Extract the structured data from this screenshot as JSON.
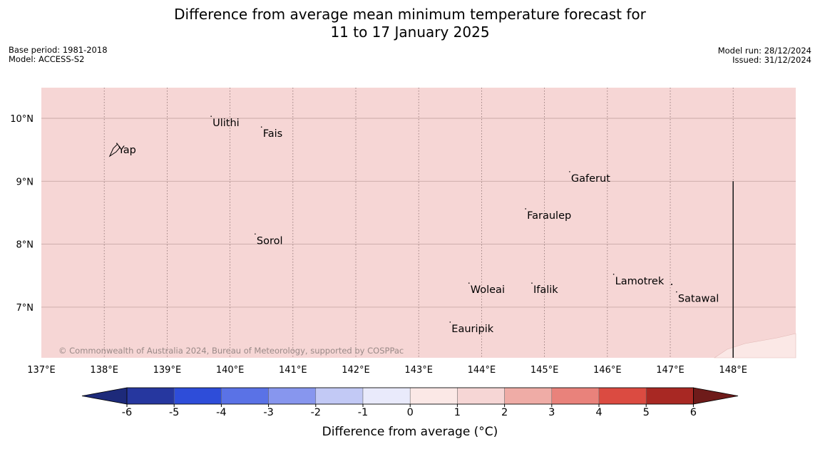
{
  "title_line1": "Difference from average mean minimum temperature forecast for",
  "title_line2": "11 to 17 January 2025",
  "meta_left": [
    "Base period: 1981-2018",
    "Model: ACCESS-S2"
  ],
  "meta_right": [
    "Model run: 28/12/2024",
    "Issued: 31/12/2024"
  ],
  "copyright": "© Commonwealth of Australia 2024, Bureau of Meteorology, supported by COSPPac",
  "lat_labels": [
    "10°N",
    "9°N",
    "8°N",
    "7°N"
  ],
  "lon_labels": [
    "137°E",
    "138°E",
    "139°E",
    "140°E",
    "141°E",
    "142°E",
    "143°E",
    "144°E",
    "145°E",
    "146°E",
    "147°E",
    "148°E"
  ],
  "places": [
    {
      "name": "Yap",
      "lon": 138.2,
      "lat": 9.5
    },
    {
      "name": "Ulithi",
      "lon": 139.7,
      "lat": 9.93
    },
    {
      "name": "Fais",
      "lon": 140.5,
      "lat": 9.76
    },
    {
      "name": "Gaferut",
      "lon": 145.4,
      "lat": 9.05
    },
    {
      "name": "Faraulep",
      "lon": 144.7,
      "lat": 8.46
    },
    {
      "name": "Sorol",
      "lon": 140.4,
      "lat": 8.06
    },
    {
      "name": "Lamotrek",
      "lon": 146.1,
      "lat": 7.42
    },
    {
      "name": "Woleai",
      "lon": 143.8,
      "lat": 7.28
    },
    {
      "name": "Ifalik",
      "lon": 144.8,
      "lat": 7.28
    },
    {
      "name": "Satawal",
      "lon": 147.1,
      "lat": 7.14
    },
    {
      "name": "Eauripik",
      "lon": 143.5,
      "lat": 6.66
    }
  ],
  "map_extent": {
    "lon": [
      137,
      149
    ],
    "lat": [
      6.2,
      10.5
    ]
  },
  "field_color": "#f6d6d5",
  "lower_right_color": "#fbe8e6",
  "colorbar": {
    "ticks": [
      "-6",
      "-5",
      "-4",
      "-3",
      "-2",
      "-1",
      "0",
      "1",
      "2",
      "3",
      "4",
      "5",
      "6"
    ],
    "bins": [
      "#26379f",
      "#2e4dd9",
      "#5a72e6",
      "#8796ee",
      "#c2c9f5",
      "#e9eafb",
      "#fbe8e6",
      "#f6d6d5",
      "#efaca6",
      "#e9827b",
      "#db4b41",
      "#a82823"
    ],
    "low_extend": "#1d2a7a",
    "high_extend": "#6e1b1a",
    "label": "Difference from average (°C)"
  }
}
